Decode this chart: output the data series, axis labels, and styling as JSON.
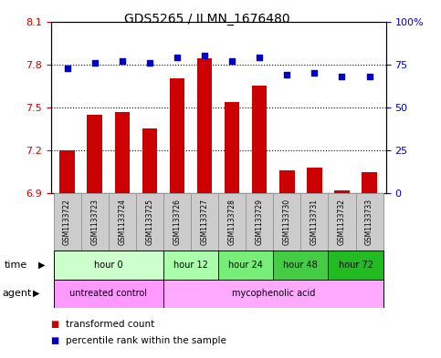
{
  "title": "GDS5265 / ILMN_1676480",
  "samples": [
    "GSM1133722",
    "GSM1133723",
    "GSM1133724",
    "GSM1133725",
    "GSM1133726",
    "GSM1133727",
    "GSM1133728",
    "GSM1133729",
    "GSM1133730",
    "GSM1133731",
    "GSM1133732",
    "GSM1133733"
  ],
  "transformed_count": [
    7.2,
    7.45,
    7.47,
    7.35,
    7.7,
    7.84,
    7.54,
    7.65,
    7.06,
    7.08,
    6.92,
    7.05
  ],
  "percentile_rank": [
    73,
    76,
    77,
    76,
    79,
    80,
    77,
    79,
    69,
    70,
    68,
    68
  ],
  "bar_color": "#cc0000",
  "dot_color": "#0000cc",
  "ylim_left": [
    6.9,
    8.1
  ],
  "ylim_right": [
    0,
    100
  ],
  "yticks_left": [
    6.9,
    7.2,
    7.5,
    7.8,
    8.1
  ],
  "yticks_right": [
    0,
    25,
    50,
    75,
    100
  ],
  "hlines": [
    7.2,
    7.5,
    7.8
  ],
  "time_groups": [
    {
      "label": "hour 0",
      "start": 0,
      "end": 4,
      "color": "#ccffcc"
    },
    {
      "label": "hour 12",
      "start": 4,
      "end": 6,
      "color": "#aaffaa"
    },
    {
      "label": "hour 24",
      "start": 6,
      "end": 8,
      "color": "#77ee77"
    },
    {
      "label": "hour 48",
      "start": 8,
      "end": 10,
      "color": "#44cc44"
    },
    {
      "label": "hour 72",
      "start": 10,
      "end": 12,
      "color": "#22bb22"
    }
  ],
  "agent_groups": [
    {
      "label": "untreated control",
      "start": 0,
      "end": 4,
      "color": "#ff99ff"
    },
    {
      "label": "mycophenolic acid",
      "start": 4,
      "end": 12,
      "color": "#ffaaff"
    }
  ],
  "bar_bottom": 6.9,
  "n_samples": 12,
  "sample_box_color": "#cccccc",
  "sample_box_edge": "#999999",
  "legend_bar_label": "transformed count",
  "legend_dot_label": "percentile rank within the sample",
  "time_label": "time",
  "agent_label": "agent",
  "title_fontsize": 10,
  "tick_fontsize": 8,
  "label_fontsize": 8,
  "sample_fontsize": 5.5,
  "row_fontsize": 7,
  "legend_fontsize": 7.5
}
